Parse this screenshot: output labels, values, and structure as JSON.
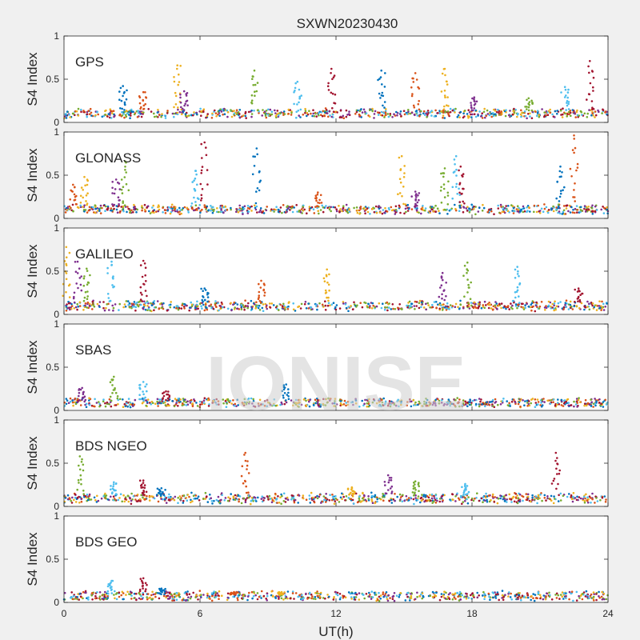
{
  "figure": {
    "title": "SXWN20230430",
    "xlabel": "UT(h)",
    "watermark": "IONISE",
    "background": "#f0f0f0"
  },
  "chart_data": {
    "type": "scatter",
    "x_range": [
      0,
      24
    ],
    "x_ticks": [
      0,
      6,
      12,
      18,
      24
    ],
    "x_tick_labels": [
      "0",
      "6",
      "12",
      "18",
      "24"
    ],
    "ylim": [
      0,
      1
    ],
    "y_ticks": [
      0,
      0.5,
      1
    ],
    "y_tick_labels": [
      "0",
      "0.5",
      "1"
    ],
    "ylabel": "S4 Index",
    "grid": false,
    "series_colors": [
      "#0072BD",
      "#D95319",
      "#EDB120",
      "#7E2F8E",
      "#77AC30",
      "#4DBEEE",
      "#A2142F"
    ],
    "panels": [
      {
        "label": "GPS",
        "baseline": [
          0.09,
          0.12
        ],
        "spikes": [
          [
            2.6,
            0.42
          ],
          [
            3.5,
            0.35
          ],
          [
            5.0,
            0.66
          ],
          [
            5.3,
            0.36
          ],
          [
            8.4,
            0.6
          ],
          [
            10.3,
            0.47
          ],
          [
            11.8,
            0.62
          ],
          [
            14.0,
            0.6
          ],
          [
            15.5,
            0.57
          ],
          [
            16.8,
            0.62
          ],
          [
            18.1,
            0.29
          ],
          [
            20.5,
            0.28
          ],
          [
            22.1,
            0.41
          ],
          [
            23.2,
            0.71
          ]
        ]
      },
      {
        "label": "GLONASS",
        "baseline": [
          0.09,
          0.12
        ],
        "spikes": [
          [
            0.4,
            0.39
          ],
          [
            0.9,
            0.48
          ],
          [
            2.3,
            0.45
          ],
          [
            2.7,
            0.66
          ],
          [
            5.8,
            0.55
          ],
          [
            6.2,
            0.88
          ],
          [
            8.5,
            0.81
          ],
          [
            11.2,
            0.3
          ],
          [
            14.9,
            0.72
          ],
          [
            15.5,
            0.31
          ],
          [
            16.8,
            0.58
          ],
          [
            17.3,
            0.72
          ],
          [
            17.5,
            0.6
          ],
          [
            21.9,
            0.6
          ],
          [
            22.5,
            0.96
          ]
        ]
      },
      {
        "label": "GALILEO",
        "baseline": [
          0.08,
          0.12
        ],
        "spikes": [
          [
            0.1,
            0.78
          ],
          [
            0.6,
            0.61
          ],
          [
            1.0,
            0.53
          ],
          [
            2.1,
            0.61
          ],
          [
            3.5,
            0.62
          ],
          [
            6.2,
            0.3
          ],
          [
            8.7,
            0.39
          ],
          [
            11.6,
            0.52
          ],
          [
            16.7,
            0.48
          ],
          [
            17.8,
            0.6
          ],
          [
            20.0,
            0.55
          ],
          [
            22.7,
            0.3
          ]
        ]
      },
      {
        "label": "SBAS",
        "baseline": [
          0.08,
          0.1
        ],
        "spikes": [
          [
            0.8,
            0.26
          ],
          [
            2.2,
            0.39
          ],
          [
            3.5,
            0.33
          ],
          [
            4.5,
            0.22
          ],
          [
            9.8,
            0.3
          ]
        ]
      },
      {
        "label": "BDS NGEO",
        "baseline": [
          0.07,
          0.12
        ],
        "spikes": [
          [
            0.7,
            0.58
          ],
          [
            2.2,
            0.28
          ],
          [
            3.5,
            0.3
          ],
          [
            4.3,
            0.21
          ],
          [
            8.0,
            0.62
          ],
          [
            12.7,
            0.22
          ],
          [
            14.3,
            0.36
          ],
          [
            15.5,
            0.29
          ],
          [
            17.7,
            0.26
          ],
          [
            21.7,
            0.62
          ]
        ]
      },
      {
        "label": "BDS GEO",
        "baseline": [
          0.06,
          0.09
        ],
        "spikes": [
          [
            2.1,
            0.25
          ],
          [
            3.5,
            0.28
          ],
          [
            4.3,
            0.16
          ],
          [
            7.5,
            0.12
          ],
          [
            9.6,
            0.12
          ]
        ]
      }
    ]
  }
}
